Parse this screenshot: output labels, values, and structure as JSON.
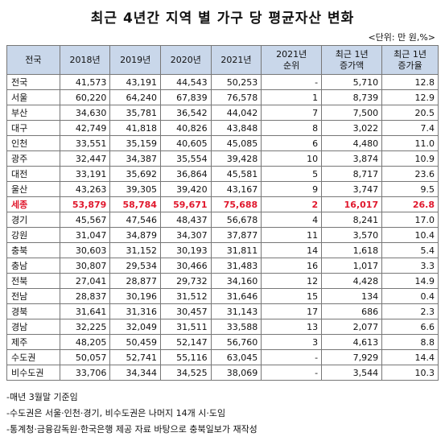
{
  "title": "최근 4년간 지역 별 가구 당 평균자산 변화",
  "unit": "<단위: 만 원,%>",
  "headers": [
    "전국",
    "2018년",
    "2019년",
    "2020년",
    "2021년",
    "2021년\n순위",
    "최근 1년\n증가액",
    "최근 1년\n증가율"
  ],
  "highlight_color": "#e0182d",
  "header_bg": "#c9d7ea",
  "rows": [
    {
      "region": "전국",
      "y2018": "41,573",
      "y2019": "43,191",
      "y2020": "44,543",
      "y2021": "50,253",
      "rank": "-",
      "inc": "5,710",
      "rate": "12.8",
      "highlight": false
    },
    {
      "region": "서울",
      "y2018": "60,220",
      "y2019": "64,240",
      "y2020": "67,839",
      "y2021": "76,578",
      "rank": "1",
      "inc": "8,739",
      "rate": "12.9",
      "highlight": false
    },
    {
      "region": "부산",
      "y2018": "34,630",
      "y2019": "35,781",
      "y2020": "36,542",
      "y2021": "44,042",
      "rank": "7",
      "inc": "7,500",
      "rate": "20.5",
      "highlight": false
    },
    {
      "region": "대구",
      "y2018": "42,749",
      "y2019": "41,818",
      "y2020": "40,826",
      "y2021": "43,848",
      "rank": "8",
      "inc": "3,022",
      "rate": "7.4",
      "highlight": false
    },
    {
      "region": "인천",
      "y2018": "33,551",
      "y2019": "35,159",
      "y2020": "40,605",
      "y2021": "45,085",
      "rank": "6",
      "inc": "4,480",
      "rate": "11.0",
      "highlight": false
    },
    {
      "region": "광주",
      "y2018": "32,447",
      "y2019": "34,387",
      "y2020": "35,554",
      "y2021": "39,428",
      "rank": "10",
      "inc": "3,874",
      "rate": "10.9",
      "highlight": false
    },
    {
      "region": "대전",
      "y2018": "33,191",
      "y2019": "35,692",
      "y2020": "36,864",
      "y2021": "45,581",
      "rank": "5",
      "inc": "8,717",
      "rate": "23.6",
      "highlight": false
    },
    {
      "region": "울산",
      "y2018": "43,263",
      "y2019": "39,305",
      "y2020": "39,420",
      "y2021": "43,167",
      "rank": "9",
      "inc": "3,747",
      "rate": "9.5",
      "highlight": false
    },
    {
      "region": "세종",
      "y2018": "53,879",
      "y2019": "58,784",
      "y2020": "59,671",
      "y2021": "75,688",
      "rank": "2",
      "inc": "16,017",
      "rate": "26.8",
      "highlight": true
    },
    {
      "region": "경기",
      "y2018": "45,567",
      "y2019": "47,546",
      "y2020": "48,437",
      "y2021": "56,678",
      "rank": "4",
      "inc": "8,241",
      "rate": "17.0",
      "highlight": false
    },
    {
      "region": "강원",
      "y2018": "31,047",
      "y2019": "34,879",
      "y2020": "34,307",
      "y2021": "37,877",
      "rank": "11",
      "inc": "3,570",
      "rate": "10.4",
      "highlight": false
    },
    {
      "region": "충북",
      "y2018": "30,603",
      "y2019": "31,152",
      "y2020": "30,193",
      "y2021": "31,811",
      "rank": "14",
      "inc": "1,618",
      "rate": "5.4",
      "highlight": false
    },
    {
      "region": "충남",
      "y2018": "30,807",
      "y2019": "29,534",
      "y2020": "30,466",
      "y2021": "31,483",
      "rank": "16",
      "inc": "1,017",
      "rate": "3.3",
      "highlight": false
    },
    {
      "region": "전북",
      "y2018": "27,041",
      "y2019": "28,877",
      "y2020": "29,732",
      "y2021": "34,160",
      "rank": "12",
      "inc": "4,428",
      "rate": "14.9",
      "highlight": false
    },
    {
      "region": "전남",
      "y2018": "28,837",
      "y2019": "30,196",
      "y2020": "31,512",
      "y2021": "31,646",
      "rank": "15",
      "inc": "134",
      "rate": "0.4",
      "highlight": false
    },
    {
      "region": "경북",
      "y2018": "31,641",
      "y2019": "31,316",
      "y2020": "30,457",
      "y2021": "31,143",
      "rank": "17",
      "inc": "686",
      "rate": "2.3",
      "highlight": false
    },
    {
      "region": "경남",
      "y2018": "32,225",
      "y2019": "32,049",
      "y2020": "31,511",
      "y2021": "33,588",
      "rank": "13",
      "inc": "2,077",
      "rate": "6.6",
      "highlight": false
    },
    {
      "region": "제주",
      "y2018": "48,205",
      "y2019": "50,459",
      "y2020": "52,147",
      "y2021": "56,760",
      "rank": "3",
      "inc": "4,613",
      "rate": "8.8",
      "highlight": false
    },
    {
      "region": "수도권",
      "y2018": "50,057",
      "y2019": "52,741",
      "y2020": "55,116",
      "y2021": "63,045",
      "rank": "-",
      "inc": "7,929",
      "rate": "14.4",
      "highlight": false
    },
    {
      "region": "비수도권",
      "y2018": "33,706",
      "y2019": "34,344",
      "y2020": "34,525",
      "y2021": "38,069",
      "rank": "-",
      "inc": "3,544",
      "rate": "10.3",
      "highlight": false
    }
  ],
  "notes": [
    "-매년 3월말 기준임",
    "-수도권은 서울·인천·경기, 비수도권은 나머지 14개 시·도임",
    "-통계청·금융감독원·한국은행 제공 자료 바탕으로 충북일보가 재작성"
  ]
}
